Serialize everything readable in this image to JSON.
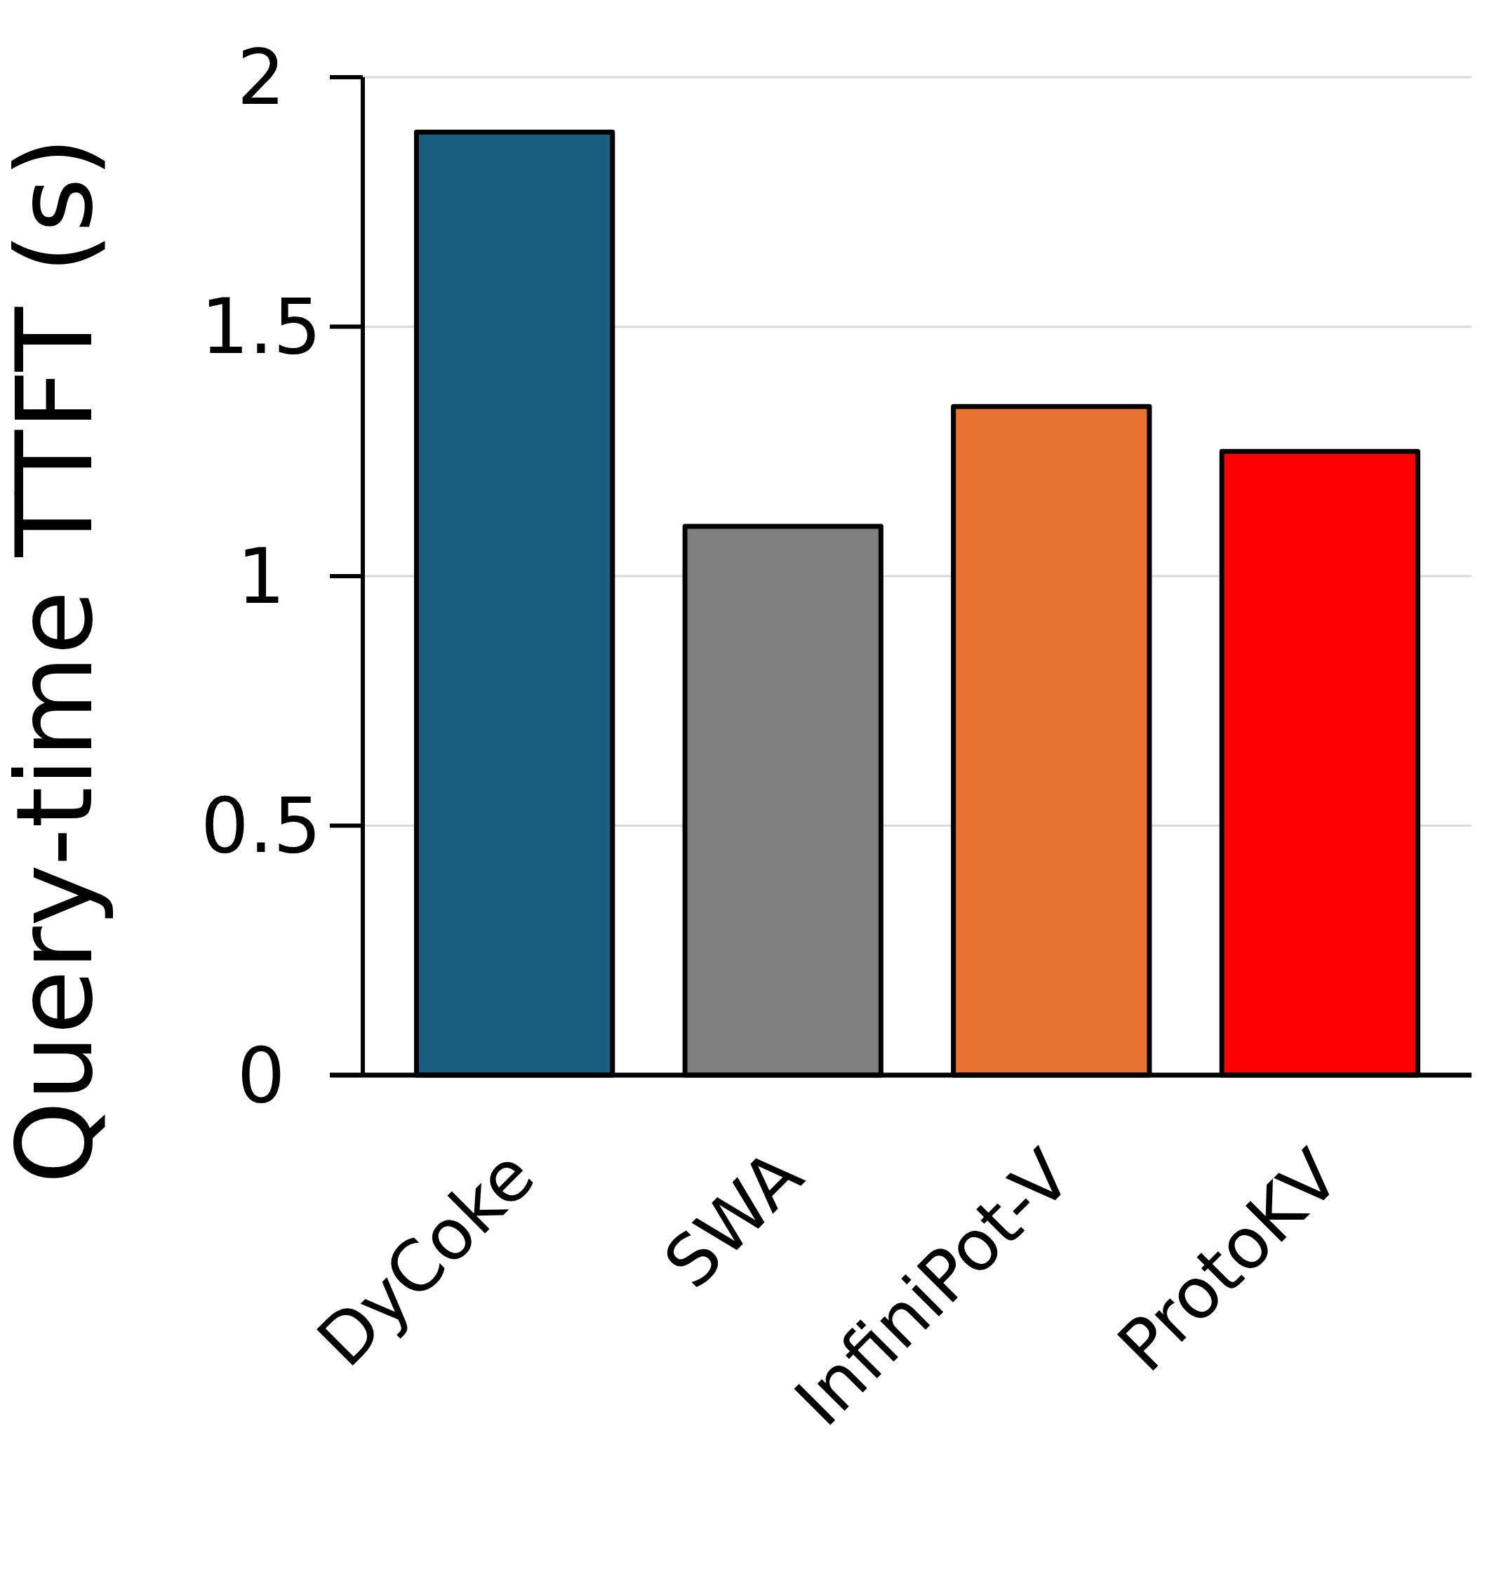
{
  "chart_data": {
    "type": "bar",
    "ylabel": "Query-time TTFT (s)",
    "categories": [
      "DyCoke",
      "SWA",
      "InfiniPot-V",
      "ProtoKV"
    ],
    "values": [
      1.89,
      1.1,
      1.34,
      1.25
    ],
    "colors": [
      "#1a5f82",
      "#808080",
      "#e87232",
      "#ff0000"
    ],
    "ylim": [
      0,
      2
    ],
    "yticks": [
      0,
      0.5,
      1,
      1.5,
      2
    ],
    "grid": "y"
  }
}
